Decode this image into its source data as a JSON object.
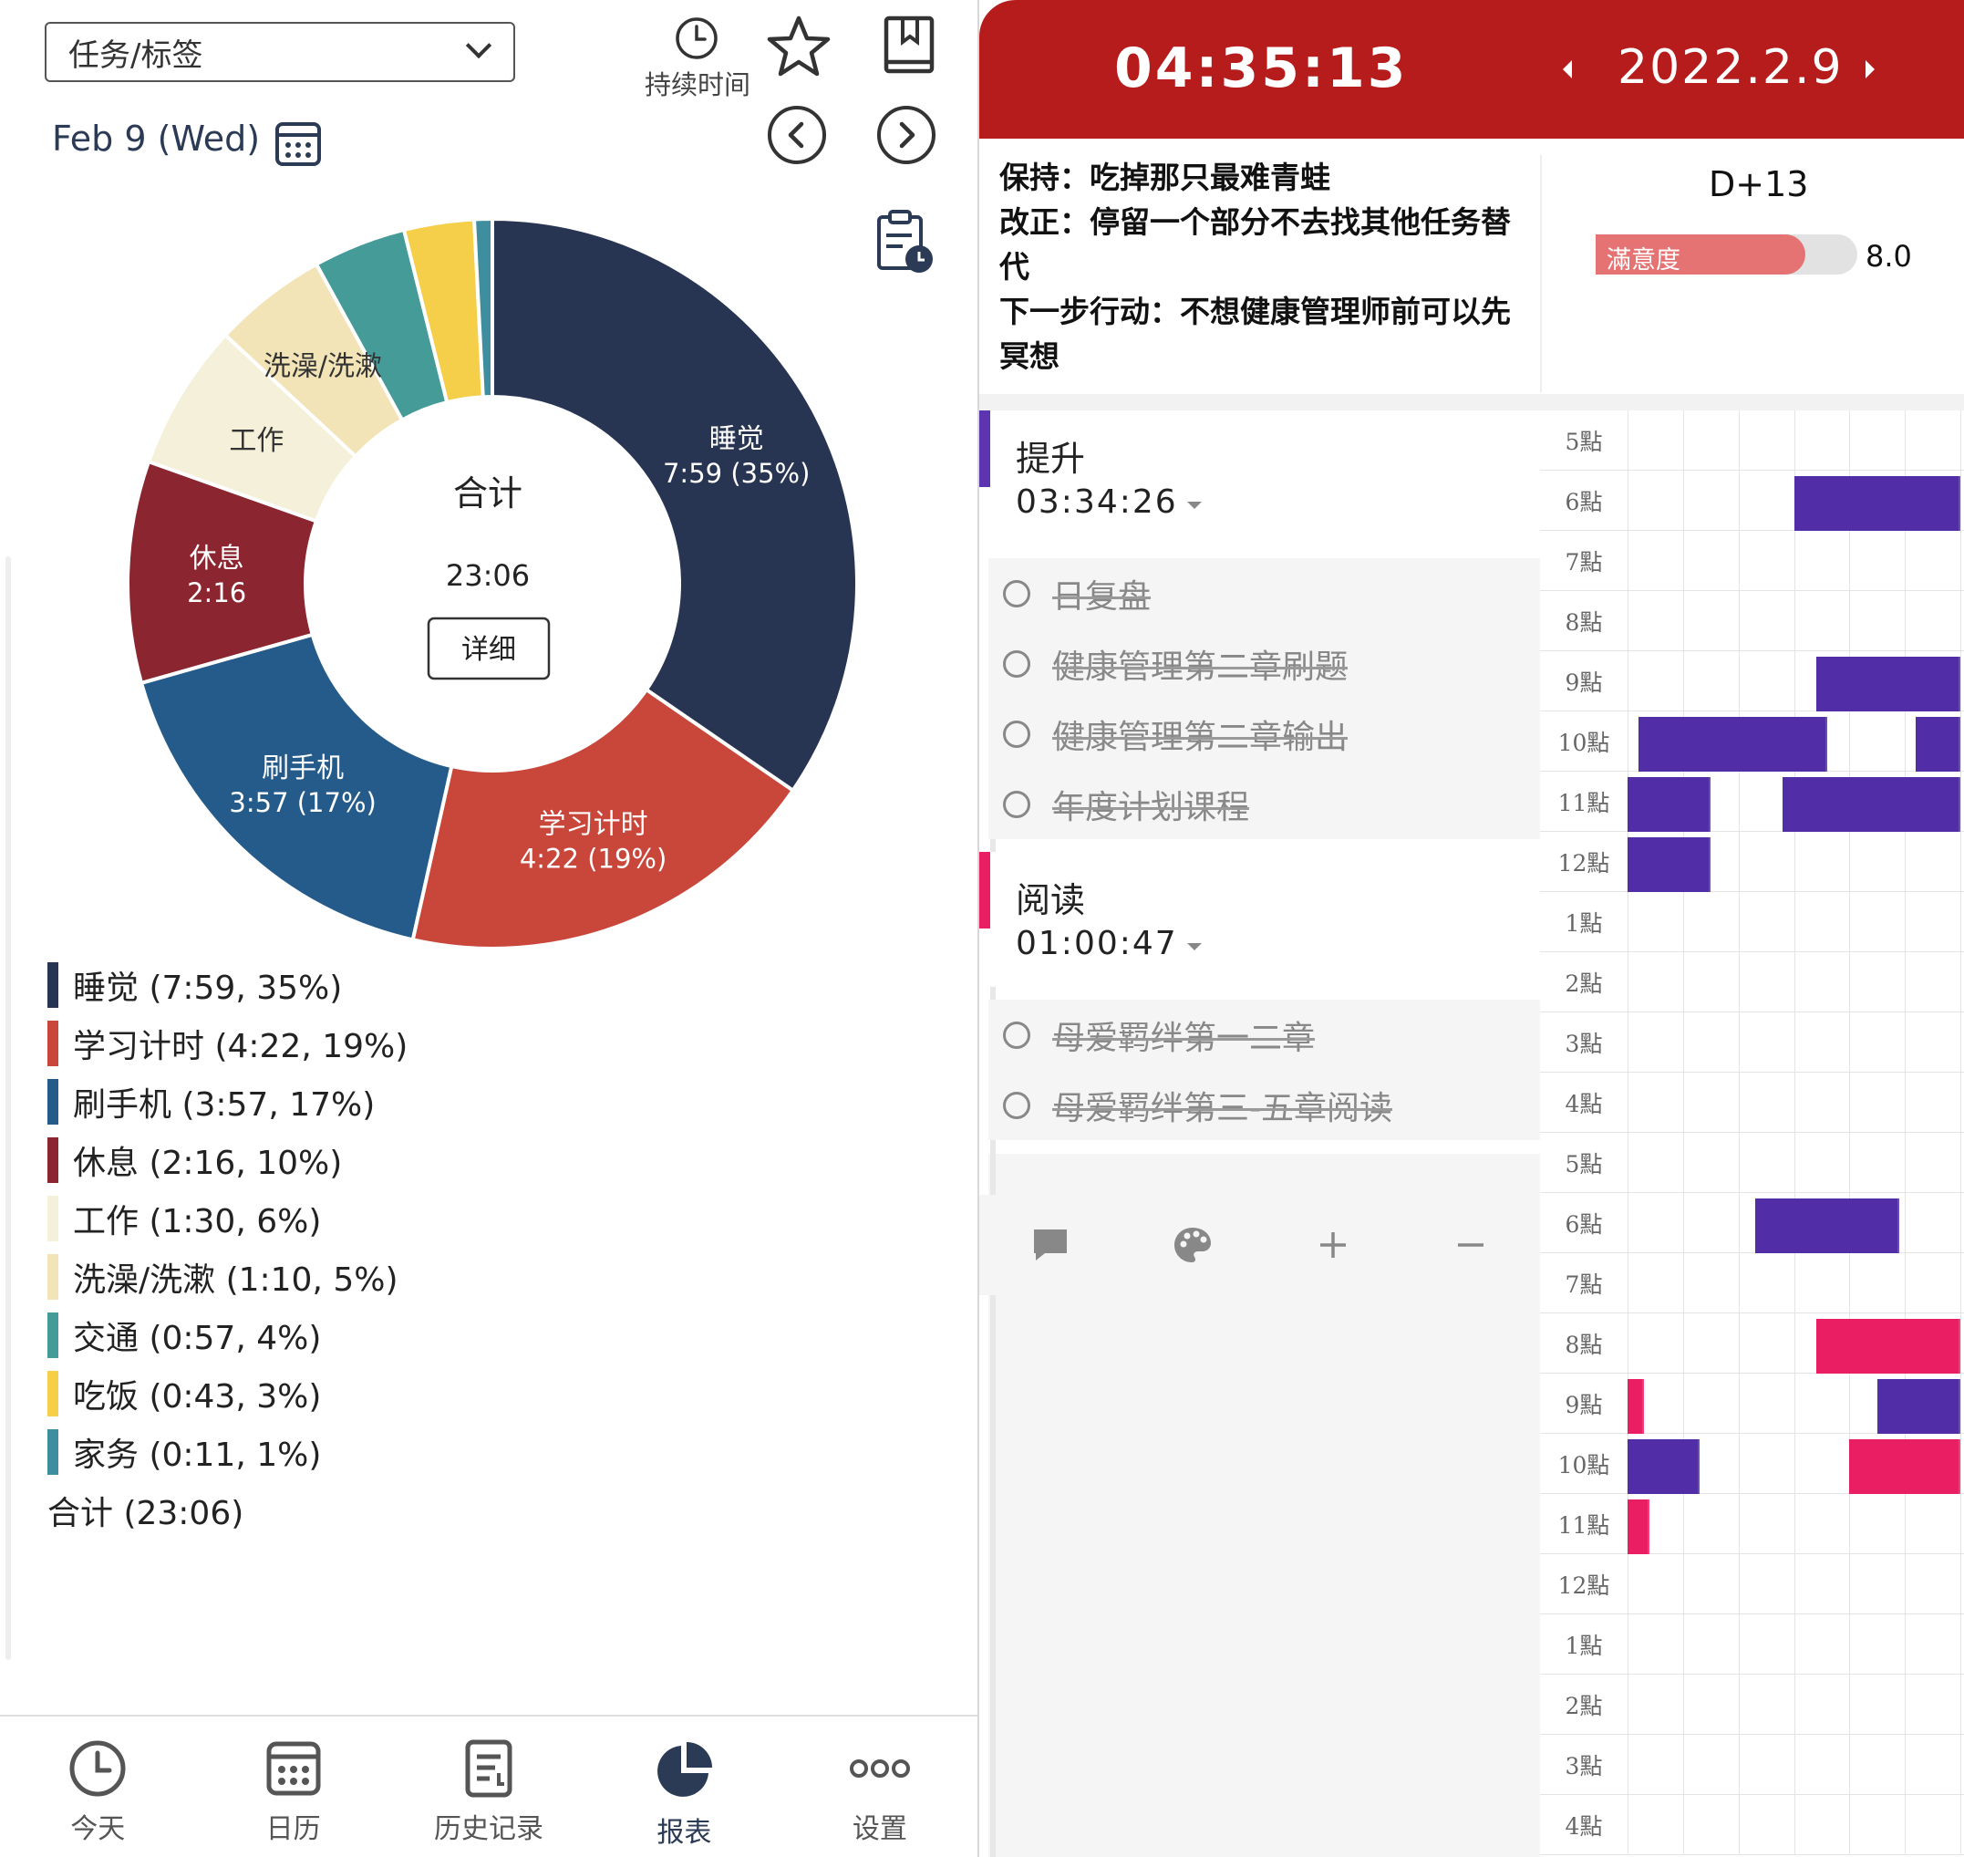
{
  "left": {
    "task_select": {
      "label": "任务/标签"
    },
    "duration_label": "持续时间",
    "date": "Feb 9 (Wed)",
    "icons": [
      "clock-icon",
      "star-icon",
      "bookmark-book-icon",
      "prev-arrow-icon",
      "next-arrow-icon",
      "calendar-icon",
      "clipboard-clock-icon"
    ],
    "donut_center": {
      "title": "合计",
      "total": "23:06",
      "detail_button": "详细"
    },
    "legend": [
      {
        "label": "睡觉 (7:59, 35%)",
        "color": "#283552"
      },
      {
        "label": "学习计时 (4:22, 19%)",
        "color": "#c9473a"
      },
      {
        "label": "刷手机 (3:57, 17%)",
        "color": "#245b8a"
      },
      {
        "label": "休息 (2:16, 10%)",
        "color": "#8b2530"
      },
      {
        "label": "工作 (1:30, 6%)",
        "color": "#f4f0d9"
      },
      {
        "label": "洗澡/洗漱 (1:10, 5%)",
        "color": "#f2e4b7"
      },
      {
        "label": "交通 (0:57, 4%)",
        "color": "#449b97"
      },
      {
        "label": "吃饭 (0:43, 3%)",
        "color": "#f5cf4a"
      },
      {
        "label": "家务 (0:11, 1%)",
        "color": "#3f8ea0"
      }
    ],
    "legend_total": "合计 (23:06)",
    "tabs": [
      {
        "label": "今天",
        "icon": "clock-icon"
      },
      {
        "label": "日历",
        "icon": "calendar-icon"
      },
      {
        "label": "历史记录",
        "icon": "history-list-icon"
      },
      {
        "label": "报表",
        "icon": "pie-chart-icon",
        "active": true
      },
      {
        "label": "设置",
        "icon": "more-dots-icon"
      }
    ]
  },
  "chart_data": {
    "type": "pie",
    "categories": [
      "睡觉",
      "学习计时",
      "刷手机",
      "休息",
      "工作",
      "洗澡/洗漱",
      "交通",
      "吃饭",
      "家务"
    ],
    "values": [
      479,
      262,
      237,
      136,
      90,
      70,
      57,
      43,
      11
    ],
    "durations": [
      "7:59",
      "4:22",
      "3:57",
      "2:16",
      "1:30",
      "1:10",
      "0:57",
      "0:43",
      "0:11"
    ],
    "percents": [
      "35%",
      "19%",
      "17%",
      "10%",
      "6%",
      "5%",
      "4%",
      "3%",
      "1%"
    ],
    "colors": [
      "#283552",
      "#c9473a",
      "#245b8a",
      "#8b2530",
      "#f4f0d9",
      "#f2e4b7",
      "#449b97",
      "#f5cf4a",
      "#3f8ea0"
    ],
    "slice_labels": [
      {
        "name": "睡觉",
        "value": "7:59 (35%)",
        "light": true
      },
      {
        "name": "学习计时",
        "value": "4:22 (19%)",
        "light": true
      },
      {
        "name": "刷手机",
        "value": "3:57 (17%)",
        "light": true
      },
      {
        "name": "休息",
        "value": "2:16",
        "light": true
      },
      {
        "name": "工作",
        "value": "",
        "light": false
      },
      {
        "name": "洗澡/洗漱",
        "value": "",
        "light": false
      }
    ]
  },
  "right": {
    "clock": "04:35:13",
    "date": "2022.2.9",
    "notes": [
      "保持：吃掉那只最难青蛙",
      "改正：停留一个部分不去找其他任务替代",
      "下一步行动：不想健康管理师前可以先冥想"
    ],
    "day_count": "D+13",
    "satisfaction": {
      "label": "滿意度",
      "value": "8.0",
      "fraction": 0.8,
      "color": "#e57373"
    },
    "groups": [
      {
        "name": "提升",
        "time": "03:34:26",
        "color": "#5e35b1",
        "items": [
          {
            "text": "日复盘",
            "done": true
          },
          {
            "text": "健康管理第二章刷题",
            "done": true
          },
          {
            "text": "健康管理第二章输出",
            "done": true
          },
          {
            "text": "年度计划课程",
            "done": true
          }
        ]
      },
      {
        "name": "阅读",
        "time": "01:00:47",
        "color": "#e91e63",
        "items": [
          {
            "text": "母爱羁绊第一二章",
            "done": true
          },
          {
            "text": "母爱羁绊第三-五章阅读",
            "done": true
          }
        ]
      }
    ],
    "actions": [
      "comment-icon",
      "palette-icon",
      "plus-icon",
      "minus-icon"
    ],
    "hours": [
      "5點",
      "6點",
      "7點",
      "8點",
      "9點",
      "10點",
      "11點",
      "12點",
      "1點",
      "2點",
      "3點",
      "4點",
      "5點",
      "6點",
      "7點",
      "8點",
      "9點",
      "10點",
      "11點",
      "12點",
      "1點",
      "2點",
      "3點",
      "4點"
    ],
    "timeline_colors": {
      "purple": "#512da8",
      "pink": "#e91e63"
    }
  }
}
